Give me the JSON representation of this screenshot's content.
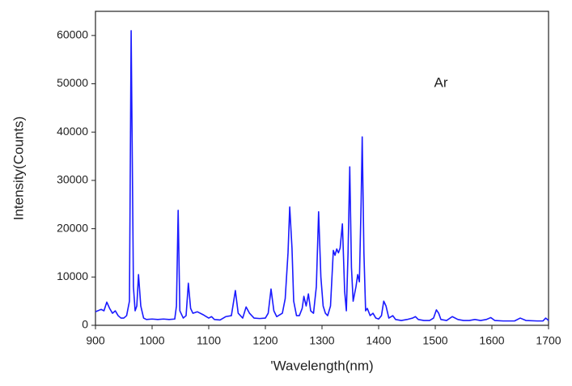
{
  "chart_data": {
    "type": "line",
    "xlabel": "'Wavelength(nm)",
    "ylabel": "Intensity(Counts)",
    "annotation": "Ar",
    "xlim": [
      900,
      1700
    ],
    "ylim": [
      0,
      65000
    ],
    "xticks": [
      900,
      1000,
      1100,
      1200,
      1300,
      1400,
      1500,
      1600,
      1700
    ],
    "yticks": [
      0,
      10000,
      20000,
      30000,
      40000,
      50000,
      60000
    ],
    "x": [
      900,
      910,
      915,
      920,
      925,
      930,
      935,
      940,
      945,
      950,
      955,
      960,
      963,
      967,
      970,
      973,
      976,
      980,
      985,
      990,
      1000,
      1010,
      1020,
      1030,
      1040,
      1043,
      1046,
      1049,
      1055,
      1060,
      1064,
      1068,
      1072,
      1080,
      1090,
      1100,
      1105,
      1110,
      1120,
      1130,
      1140,
      1147,
      1152,
      1160,
      1166,
      1172,
      1180,
      1190,
      1200,
      1205,
      1210,
      1215,
      1220,
      1230,
      1235,
      1240,
      1243,
      1247,
      1250,
      1255,
      1260,
      1265,
      1268,
      1272,
      1276,
      1280,
      1285,
      1290,
      1294,
      1298,
      1302,
      1306,
      1310,
      1315,
      1320,
      1323,
      1326,
      1329,
      1332,
      1336,
      1340,
      1343,
      1346,
      1349,
      1352,
      1355,
      1360,
      1363,
      1366,
      1369,
      1371,
      1374,
      1377,
      1380,
      1385,
      1390,
      1395,
      1400,
      1405,
      1409,
      1413,
      1418,
      1425,
      1430,
      1440,
      1450,
      1460,
      1465,
      1470,
      1480,
      1490,
      1497,
      1502,
      1506,
      1510,
      1520,
      1530,
      1540,
      1550,
      1560,
      1570,
      1580,
      1590,
      1598,
      1605,
      1620,
      1640,
      1650,
      1660,
      1680,
      1690,
      1695,
      1700
    ],
    "series": [
      {
        "name": "Ar",
        "color": "#1a1aff",
        "values": [
          2800,
          3300,
          3000,
          4800,
          3500,
          2500,
          3000,
          2000,
          1500,
          1500,
          2000,
          5000,
          61000,
          8000,
          3000,
          4000,
          10500,
          4000,
          1500,
          1200,
          1300,
          1200,
          1300,
          1200,
          1300,
          4000,
          23800,
          3000,
          1500,
          2000,
          8700,
          3500,
          2500,
          2800,
          2200,
          1500,
          1800,
          1200,
          1100,
          1800,
          2000,
          7200,
          2500,
          1500,
          3800,
          2500,
          1500,
          1400,
          1500,
          2500,
          7500,
          3000,
          1800,
          2500,
          5500,
          15000,
          24500,
          16000,
          5000,
          2000,
          2000,
          3500,
          6000,
          4000,
          6500,
          3000,
          2500,
          8000,
          23500,
          10000,
          4000,
          2500,
          2000,
          4000,
          15500,
          14500,
          15800,
          15000,
          16000,
          21000,
          7000,
          3000,
          15000,
          32800,
          12000,
          5000,
          8000,
          10500,
          9000,
          25000,
          39000,
          15000,
          3000,
          3500,
          2000,
          2500,
          1500,
          1300,
          2000,
          5000,
          4000,
          1500,
          2000,
          1200,
          1000,
          1200,
          1500,
          1800,
          1200,
          1000,
          1000,
          1500,
          3200,
          2500,
          1200,
          1000,
          1800,
          1200,
          1000,
          1000,
          1200,
          1000,
          1200,
          1600,
          1000,
          900,
          900,
          1500,
          1000,
          900,
          900,
          1500,
          1000
        ]
      }
    ]
  }
}
